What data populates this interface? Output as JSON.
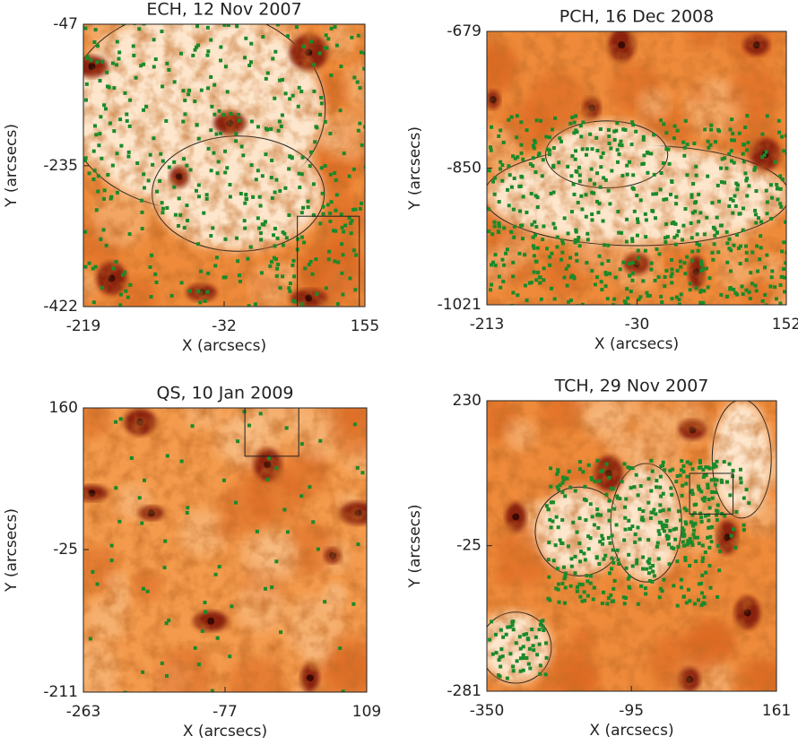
{
  "chart_data": [
    {
      "type": "heatmap",
      "title": "ECH, 12 Nov 2007",
      "xlabel": "X (arcsecs)",
      "ylabel": "Y (arcsecs)",
      "xlim": [
        -219,
        155
      ],
      "xticks": [
        -219,
        -32,
        155
      ],
      "ylim": [
        -422,
        -47
      ],
      "yticks": [
        -422,
        -235,
        -47
      ]
    },
    {
      "type": "heatmap",
      "title": "PCH, 16 Dec 2008",
      "xlabel": "X (arcsecs)",
      "ylabel": "Y (arcsecs)",
      "xlim": [
        -213,
        152
      ],
      "xticks": [
        -213,
        -30,
        152
      ],
      "ylim": [
        -1021,
        -679
      ],
      "yticks": [
        -1021,
        -850,
        -679
      ]
    },
    {
      "type": "heatmap",
      "title": "QS, 10 Jan 2009",
      "xlabel": "X (arcsecs)",
      "ylabel": "Y (arcsecs)",
      "xlim": [
        -263,
        109
      ],
      "xticks": [
        -263,
        -77,
        109
      ],
      "ylim": [
        -211,
        160
      ],
      "yticks": [
        -211,
        -25,
        160
      ]
    },
    {
      "type": "heatmap",
      "title": "TCH, 29 Nov 2007",
      "xlabel": "X (arcsecs)",
      "ylabel": "Y (arcsecs)",
      "xlim": [
        -350,
        161
      ],
      "xticks": [
        -350,
        -95,
        161
      ],
      "ylim": [
        -281,
        230
      ],
      "yticks": [
        -281,
        -25,
        230
      ]
    }
  ]
}
